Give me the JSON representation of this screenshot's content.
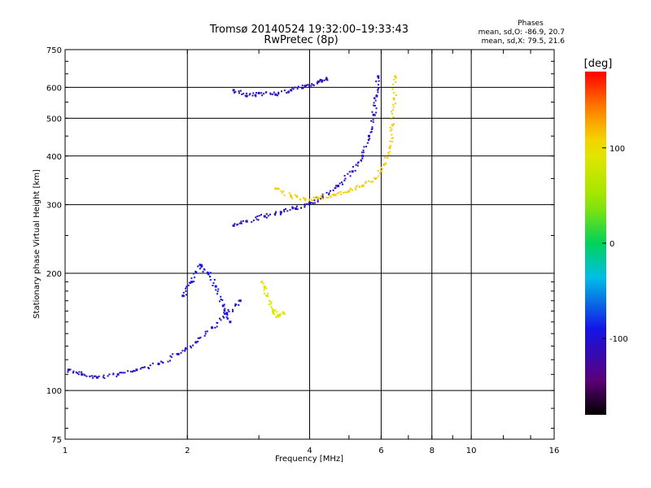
{
  "title": "Tromsø 20140524 19:32:00–19:33:43",
  "subtitle": "RwPretec (8p)",
  "stats": {
    "heading": "Phases",
    "line1": "mean, sd,O: -86.9, 20.7",
    "line2": "mean, sd,X:  79.5, 21.6"
  },
  "colorbar": {
    "label": "[deg]",
    "ticks": [
      "100",
      "0",
      "-100"
    ],
    "tick_values": [
      100,
      0,
      -100
    ],
    "range": [
      -180,
      180
    ]
  },
  "chart_data": {
    "type": "scatter",
    "title": "Tromsø 20140524 19:32:00–19:33:43",
    "subtitle": "RwPretec (8p)",
    "xlabel": "Frequency [MHz]",
    "ylabel": "Stationary phase Virtual Height [km]",
    "x_scale": "log",
    "y_scale": "log",
    "xlim": [
      1,
      16
    ],
    "ylim": [
      75,
      750
    ],
    "x_ticks": [
      1,
      2,
      4,
      6,
      8,
      10,
      16
    ],
    "x_tick_labels": [
      "1",
      "2",
      "4",
      "6",
      "8",
      "10",
      "16"
    ],
    "y_ticks": [
      75,
      100,
      200,
      300,
      400,
      500,
      600,
      750
    ],
    "y_tick_labels": [
      "75",
      "100",
      "200",
      "300",
      "400",
      "500",
      "600",
      "750"
    ],
    "grid": true,
    "colormap": "rainbow",
    "color_variable": "phase [deg]",
    "traces": [
      {
        "x": [
          1.02,
          1.1,
          1.2,
          1.35,
          1.5,
          1.7,
          1.9,
          2.1,
          2.3,
          2.5,
          2.7
        ],
        "y": [
          113,
          110,
          108,
          110,
          113,
          117,
          124,
          133,
          145,
          158,
          170
        ],
        "phase": -100
      },
      {
        "x": [
          2.6,
          2.8,
          3.1,
          3.4,
          3.7,
          4.0,
          4.3,
          4.7,
          5.1,
          5.4,
          5.6,
          5.75,
          5.85,
          5.9
        ],
        "y": [
          265,
          272,
          280,
          287,
          293,
          303,
          315,
          335,
          365,
          400,
          450,
          510,
          570,
          640
        ],
        "phase": -105
      },
      {
        "x": [
          3.3,
          3.6,
          3.9,
          4.2,
          4.6,
          5.0,
          5.4,
          5.8,
          6.1,
          6.3,
          6.4,
          6.45,
          6.5
        ],
        "y": [
          330,
          315,
          310,
          312,
          318,
          325,
          335,
          350,
          380,
          420,
          480,
          560,
          640
        ],
        "phase": 110
      },
      {
        "x": [
          2.6,
          2.8,
          3.0,
          3.3,
          3.6,
          3.9,
          4.2,
          4.4
        ],
        "y": [
          590,
          570,
          580,
          575,
          590,
          605,
          620,
          630
        ],
        "phase": -110
      },
      {
        "x": [
          1.95,
          2.05,
          2.15,
          2.25,
          2.35,
          2.45,
          2.55
        ],
        "y": [
          175,
          190,
          210,
          200,
          185,
          165,
          150
        ],
        "phase": -90
      },
      {
        "x": [
          3.05,
          3.15,
          3.25,
          3.35,
          3.45
        ],
        "y": [
          190,
          175,
          160,
          155,
          158
        ],
        "phase": 90
      }
    ]
  }
}
